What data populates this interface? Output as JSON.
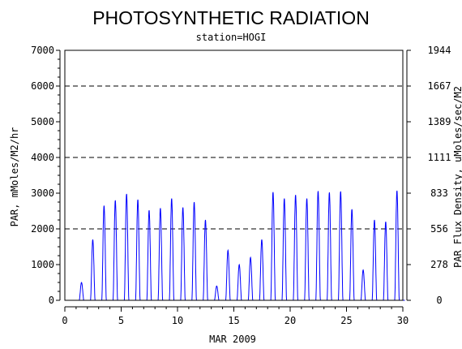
{
  "chart_data": {
    "type": "line",
    "title": "PHOTOSYNTHETIC RADIATION",
    "subtitle": "station=HOGI",
    "xlabel": "MAR 2009",
    "ylabel_left": "PAR, mMoles/M2/hr",
    "ylabel_right": "PAR Flux Density, uMoles/sec/M2",
    "xlim": [
      0,
      30
    ],
    "ylim": [
      0,
      7000
    ],
    "x_ticks": [
      0,
      5,
      10,
      15,
      20,
      25,
      30
    ],
    "y_ticks_left": [
      0,
      1000,
      2000,
      3000,
      4000,
      5000,
      6000,
      7000
    ],
    "y_ticks_right": [
      {
        "label": "0",
        "value": 0
      },
      {
        "label": "278",
        "value": 1000
      },
      {
        "label": "556",
        "value": 2000
      },
      {
        "label": "833",
        "value": 3000
      },
      {
        "label": "1111",
        "value": 4000
      },
      {
        "label": "1389",
        "value": 5000
      },
      {
        "label": "1667",
        "value": 6000
      },
      {
        "label": "1944",
        "value": 7000
      }
    ],
    "grid_lines_y": [
      2000,
      4000,
      6000
    ],
    "series": [
      {
        "color": "#0000ff",
        "daily_peaks": [
          {
            "day": 1,
            "peak": 500
          },
          {
            "day": 2,
            "peak": 1700
          },
          {
            "day": 3,
            "peak": 2650
          },
          {
            "day": 4,
            "peak": 2800
          },
          {
            "day": 5,
            "peak": 2980
          },
          {
            "day": 6,
            "peak": 2820
          },
          {
            "day": 7,
            "peak": 2520
          },
          {
            "day": 8,
            "peak": 2580
          },
          {
            "day": 9,
            "peak": 2850
          },
          {
            "day": 10,
            "peak": 2600
          },
          {
            "day": 11,
            "peak": 2750
          },
          {
            "day": 12,
            "peak": 2250
          },
          {
            "day": 13,
            "peak": 400
          },
          {
            "day": 14,
            "peak": 1400
          },
          {
            "day": 15,
            "peak": 1000
          },
          {
            "day": 16,
            "peak": 1200
          },
          {
            "day": 17,
            "peak": 1700
          },
          {
            "day": 18,
            "peak": 3030
          },
          {
            "day": 19,
            "peak": 2850
          },
          {
            "day": 20,
            "peak": 2950
          },
          {
            "day": 21,
            "peak": 2850
          },
          {
            "day": 22,
            "peak": 3060
          },
          {
            "day": 23,
            "peak": 3020
          },
          {
            "day": 24,
            "peak": 3050
          },
          {
            "day": 25,
            "peak": 2550
          },
          {
            "day": 26,
            "peak": 850
          },
          {
            "day": 27,
            "peak": 2250
          },
          {
            "day": 28,
            "peak": 2200
          },
          {
            "day": 29,
            "peak": 3070
          }
        ]
      }
    ]
  }
}
